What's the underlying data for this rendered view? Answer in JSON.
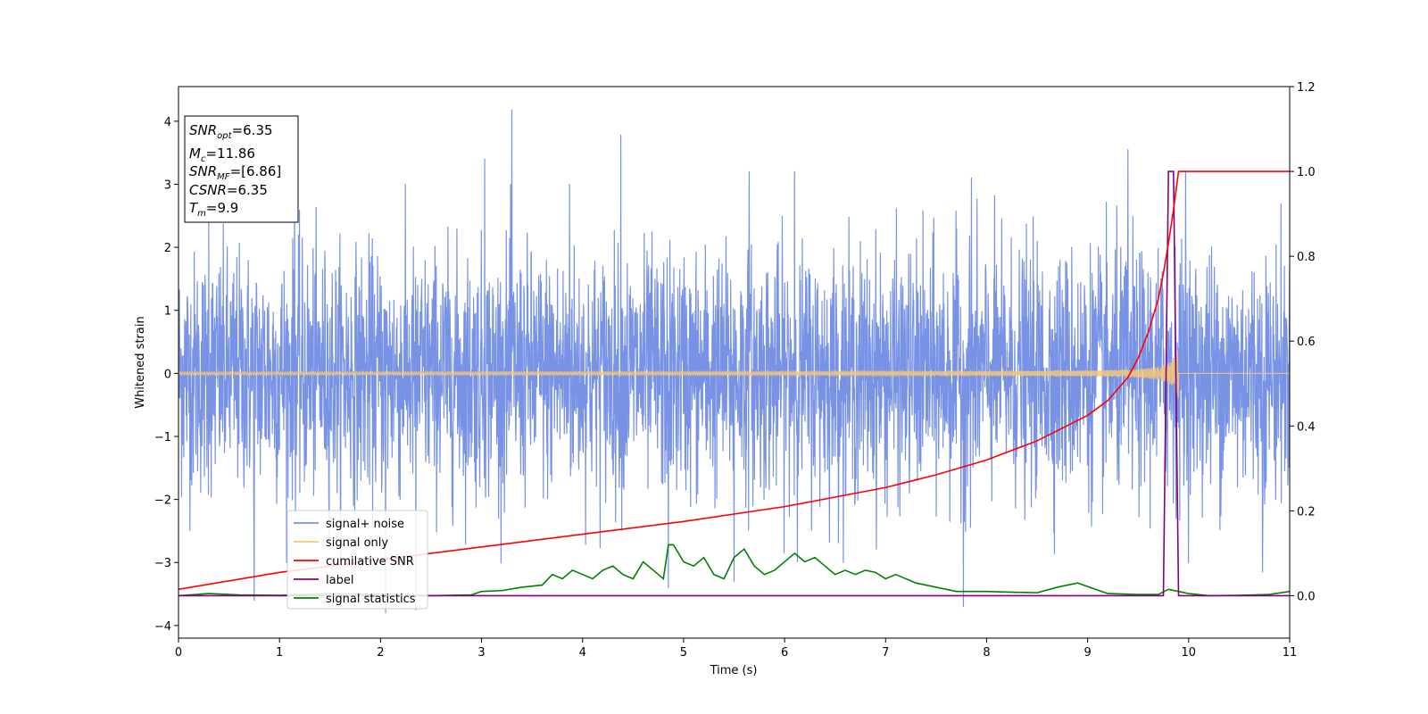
{
  "chart_data": {
    "type": "line",
    "xlabel": "Time (s)",
    "ylabel": "Whitened strain",
    "xlim": [
      0,
      11
    ],
    "ylim": [
      -4.2,
      4.55
    ],
    "y2lim": [
      -0.1,
      1.2
    ],
    "x_ticks": [
      "0",
      "1",
      "2",
      "3",
      "4",
      "5",
      "6",
      "7",
      "8",
      "9",
      "10",
      "11"
    ],
    "y_ticks": [
      "−4",
      "−3",
      "−2",
      "−1",
      "0",
      "1",
      "2",
      "3",
      "4"
    ],
    "y2_ticks": [
      "0.0",
      "0.2",
      "0.4",
      "0.6",
      "0.8",
      "1.0",
      "1.2"
    ],
    "grid": false,
    "legend_position": "lower-left",
    "annotation": {
      "snr_opt": {
        "symbol": "SNR",
        "sub": "opt",
        "value": "=6.35"
      },
      "mc": {
        "symbol": "M",
        "sub": "c",
        "value": "=11.86"
      },
      "snr_mf": {
        "symbol": "SNR",
        "sub": "MF",
        "value": "=[6.86]"
      },
      "csnr": {
        "symbol": "CSNR",
        "value": "=6.35"
      },
      "tm": {
        "symbol": "T",
        "sub": "m",
        "value": "=9.9"
      }
    },
    "series": [
      {
        "name": "signal+ noise",
        "color": "#7893e6",
        "axis": "left",
        "envelope_std": 0.95,
        "notable_peaks": [
          [
            0.3,
            2.5
          ],
          [
            0.75,
            -3.6
          ],
          [
            1.15,
            2.9
          ],
          [
            2.05,
            -3.8
          ],
          [
            2.35,
            -3.75
          ],
          [
            3.03,
            3.4
          ],
          [
            3.3,
            4.18
          ],
          [
            3.87,
            3.0
          ],
          [
            4.38,
            3.78
          ],
          [
            4.85,
            -3.4
          ],
          [
            5.5,
            -3.3
          ],
          [
            5.65,
            3.2
          ],
          [
            6.1,
            3.2
          ],
          [
            7.77,
            -3.7
          ],
          [
            7.85,
            3.1
          ],
          [
            9.4,
            3.55
          ],
          [
            9.97,
            3.2
          ],
          [
            10.73,
            -3.15
          ]
        ]
      },
      {
        "name": "signal only",
        "color": "#f5c775",
        "axis": "left",
        "chirp": {
          "merger_time": 9.9,
          "merger_amplitude": 0.45,
          "start_amplitude": 0.02
        }
      },
      {
        "name": "cumilative SNR",
        "color": "#ff0000",
        "axis": "right",
        "x": [
          0,
          1,
          2,
          3,
          4,
          5,
          6,
          7,
          7.5,
          8,
          8.5,
          9,
          9.2,
          9.4,
          9.5,
          9.6,
          9.7,
          9.75,
          9.8,
          9.85,
          9.9,
          11
        ],
        "y": [
          0.015,
          0.055,
          0.085,
          0.115,
          0.145,
          0.175,
          0.21,
          0.255,
          0.285,
          0.32,
          0.365,
          0.425,
          0.46,
          0.515,
          0.56,
          0.62,
          0.7,
          0.76,
          0.83,
          0.91,
          1.0,
          1.0
        ]
      },
      {
        "name": "label",
        "color": "#800080",
        "axis": "right",
        "x": [
          0,
          9.75,
          9.8,
          9.85,
          9.9,
          11
        ],
        "y": [
          0,
          0,
          1,
          1,
          0,
          0
        ]
      },
      {
        "name": "signal statistics",
        "color": "#008000",
        "axis": "right",
        "x": [
          0,
          0.3,
          0.6,
          1.0,
          1.5,
          2.0,
          2.5,
          2.9,
          3.0,
          3.2,
          3.4,
          3.6,
          3.7,
          3.8,
          3.9,
          4.0,
          4.1,
          4.2,
          4.3,
          4.4,
          4.5,
          4.6,
          4.7,
          4.8,
          4.85,
          4.9,
          5.0,
          5.1,
          5.2,
          5.3,
          5.4,
          5.5,
          5.6,
          5.7,
          5.8,
          5.9,
          6.0,
          6.1,
          6.2,
          6.3,
          6.4,
          6.5,
          6.6,
          6.7,
          6.8,
          6.9,
          7.0,
          7.1,
          7.2,
          7.3,
          7.5,
          7.7,
          8.0,
          8.3,
          8.5,
          8.7,
          8.9,
          9.2,
          9.5,
          9.7,
          9.8,
          9.9,
          10.0,
          10.2,
          10.5,
          10.8,
          11.0
        ],
        "y": [
          0.0,
          0.005,
          0.002,
          0.001,
          0.005,
          0.003,
          0.0,
          0.002,
          0.01,
          0.012,
          0.02,
          0.025,
          0.05,
          0.04,
          0.06,
          0.05,
          0.04,
          0.06,
          0.07,
          0.05,
          0.04,
          0.08,
          0.06,
          0.04,
          0.12,
          0.12,
          0.08,
          0.07,
          0.09,
          0.05,
          0.04,
          0.09,
          0.11,
          0.07,
          0.05,
          0.06,
          0.08,
          0.1,
          0.08,
          0.09,
          0.07,
          0.05,
          0.06,
          0.05,
          0.06,
          0.055,
          0.04,
          0.05,
          0.04,
          0.03,
          0.02,
          0.01,
          0.01,
          0.008,
          0.007,
          0.02,
          0.03,
          0.005,
          0.003,
          0.003,
          0.015,
          0.01,
          0.005,
          0.0,
          0.001,
          0.003,
          0.01
        ]
      }
    ]
  }
}
